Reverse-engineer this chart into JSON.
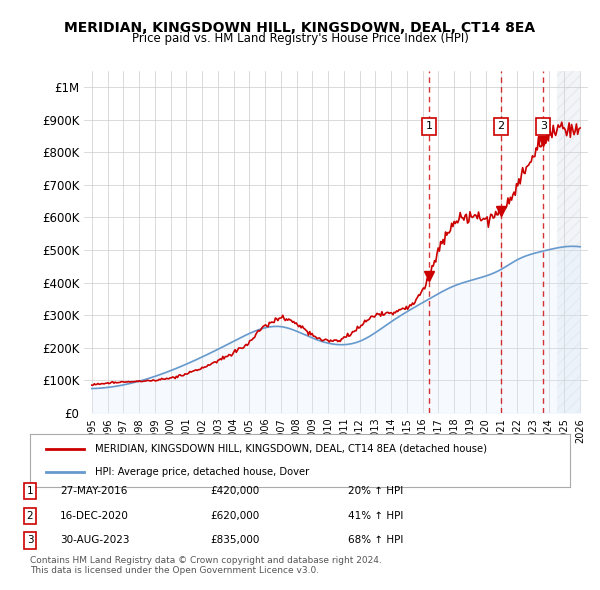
{
  "title": "MERIDIAN, KINGSDOWN HILL, KINGSDOWN, DEAL, CT14 8EA",
  "subtitle": "Price paid vs. HM Land Registry's House Price Index (HPI)",
  "ylabel_top": "£1M",
  "ylim": [
    0,
    1000000
  ],
  "yticks": [
    0,
    100000,
    200000,
    300000,
    400000,
    500000,
    600000,
    700000,
    800000,
    900000,
    1000000
  ],
  "ytick_labels": [
    "£0",
    "£100K",
    "£200K",
    "£300K",
    "£400K",
    "£500K",
    "£600K",
    "£700K",
    "£800K",
    "£900K",
    "£1M"
  ],
  "sale_color": "#cc0000",
  "hpi_color": "#6699cc",
  "hpi_fill_color": "#ddeeff",
  "hatch_color": "#bbccdd",
  "sale_dates": [
    2016.41,
    2020.96,
    2023.66
  ],
  "sale_prices": [
    420000,
    620000,
    835000
  ],
  "sale_labels": [
    "1",
    "2",
    "3"
  ],
  "sale_annotations": [
    {
      "label": "1",
      "date": "27-MAY-2016",
      "price": "£420,000",
      "pct": "20% ↑ HPI"
    },
    {
      "label": "2",
      "date": "16-DEC-2020",
      "price": "£620,000",
      "pct": "41% ↑ HPI"
    },
    {
      "label": "3",
      "date": "30-AUG-2023",
      "price": "£835,000",
      "pct": "68% ↑ HPI"
    }
  ],
  "legend_property_label": "MERIDIAN, KINGSDOWN HILL, KINGSDOWN, DEAL, CT14 8EA (detached house)",
  "legend_hpi_label": "HPI: Average price, detached house, Dover",
  "footer_line1": "Contains HM Land Registry data © Crown copyright and database right 2024.",
  "footer_line2": "This data is licensed under the Open Government Licence v3.0.",
  "background_color": "#ffffff",
  "grid_color": "#cccccc"
}
